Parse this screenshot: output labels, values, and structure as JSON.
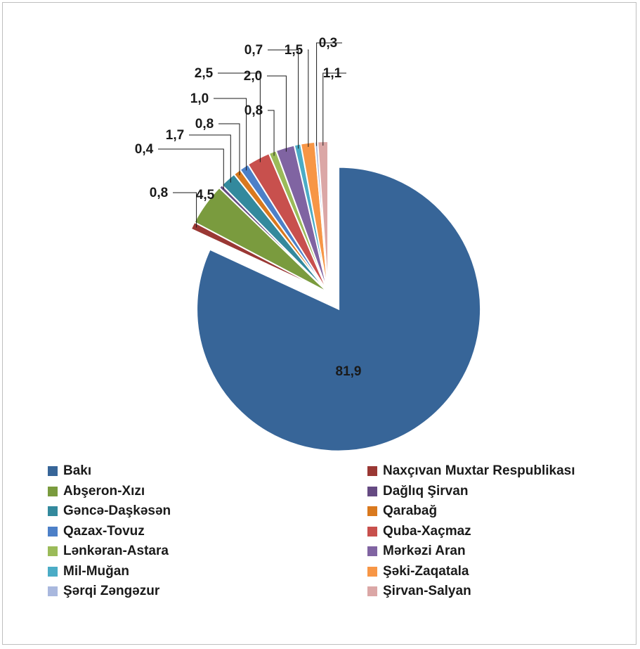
{
  "chart_data": {
    "type": "pie",
    "title": "",
    "legend_position": "bottom",
    "exploded_slice": "Bakı",
    "series": [
      {
        "name": "Bakı",
        "value": 81.9,
        "label": "81,9",
        "color": "#376598"
      },
      {
        "name": "Naxçıvan Muxtar Respublikası",
        "value": 0.8,
        "label": "0,8",
        "color": "#9a3834"
      },
      {
        "name": "Abşeron-Xızı",
        "value": 4.5,
        "label": "4,5",
        "color": "#7a9b3e"
      },
      {
        "name": "Dağlıq Şirvan",
        "value": 0.4,
        "label": "0,4",
        "color": "#654a82"
      },
      {
        "name": "Gəncə-Daşkəsən",
        "value": 1.7,
        "label": "1,7",
        "color": "#33899d"
      },
      {
        "name": "Qarabağ",
        "value": 0.8,
        "label": "0,8",
        "color": "#d9791e"
      },
      {
        "name": "Qazax-Tovuz",
        "value": 1.0,
        "label": "1,0",
        "color": "#4d80c8"
      },
      {
        "name": "Quba-Xaçmaz",
        "value": 2.5,
        "label": "2,5",
        "color": "#c8504d"
      },
      {
        "name": "Lənkəran-Astara",
        "value": 0.8,
        "label": "0,8",
        "color": "#9bbb59"
      },
      {
        "name": "Mərkəzi Aran",
        "value": 2.0,
        "label": "2,0",
        "color": "#8064a2"
      },
      {
        "name": "Mil-Muğan",
        "value": 0.7,
        "label": "0,7",
        "color": "#4bacc6"
      },
      {
        "name": "Şəki-Zaqatala",
        "value": 1.5,
        "label": "1,5",
        "color": "#f79646"
      },
      {
        "name": "Şərqi Zəngəzur",
        "value": 0.3,
        "label": "0,3",
        "color": "#a9b8de"
      },
      {
        "name": "Şirvan-Salyan",
        "value": 1.1,
        "label": "1,1",
        "color": "#dba7a6"
      }
    ]
  }
}
